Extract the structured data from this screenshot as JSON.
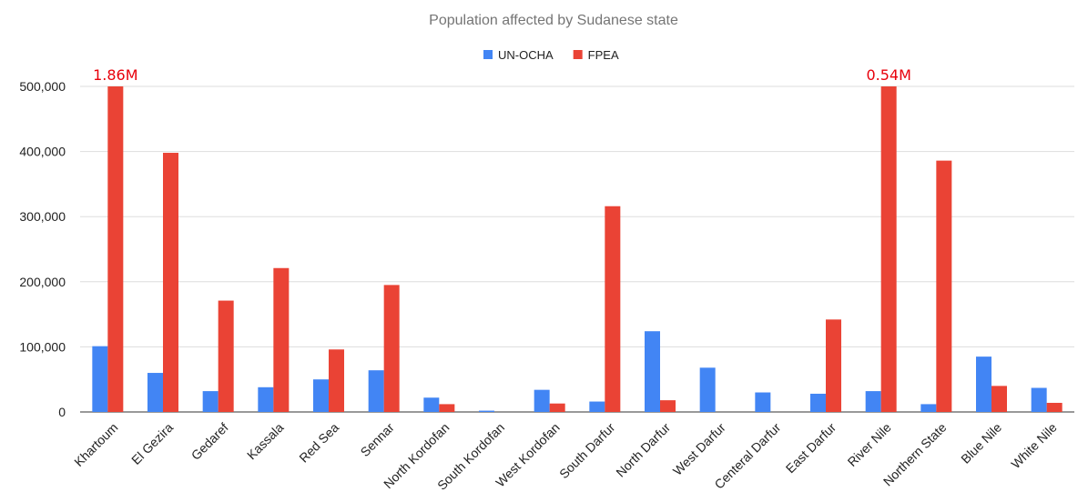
{
  "chart_data": {
    "type": "bar",
    "title": "Population affected by Sudanese state",
    "xlabel": "",
    "ylabel": "",
    "ylim": [
      0,
      500000
    ],
    "yticks": [
      0,
      100000,
      200000,
      300000,
      400000,
      500000
    ],
    "ytick_labels": [
      "0",
      "100,000",
      "200,000",
      "300,000",
      "400,000",
      "500,000"
    ],
    "grid": true,
    "legend_position": "top",
    "categories": [
      "Khartoum",
      "El Gezira",
      "Gedaref",
      "Kassala",
      "Red Sea",
      "Sennar",
      "North Kordofan",
      "South Kordofan",
      "West Kordofan",
      "South Darfur",
      "North Darfur",
      "West Darfur",
      "Centeral Darfur",
      "East Darfur",
      "River Nile",
      "Northern State",
      "Blue Nile",
      "White Nile"
    ],
    "series": [
      {
        "name": "UN-OCHA",
        "color": "#4285f4",
        "values": [
          101000,
          60000,
          32000,
          38000,
          50000,
          64000,
          22000,
          2000,
          34000,
          16000,
          124000,
          68000,
          30000,
          28000,
          32000,
          12000,
          85000,
          37000
        ]
      },
      {
        "name": "FPEA",
        "color": "#ea4335",
        "values": [
          500000,
          398000,
          171000,
          221000,
          96000,
          195000,
          12000,
          0,
          13000,
          316000,
          18000,
          0,
          0,
          142000,
          500000,
          386000,
          40000,
          14000
        ]
      }
    ],
    "annotations": [
      {
        "text": "1.86M",
        "category": "Khartoum"
      },
      {
        "text": "0.54M",
        "category": "River Nile"
      }
    ]
  }
}
